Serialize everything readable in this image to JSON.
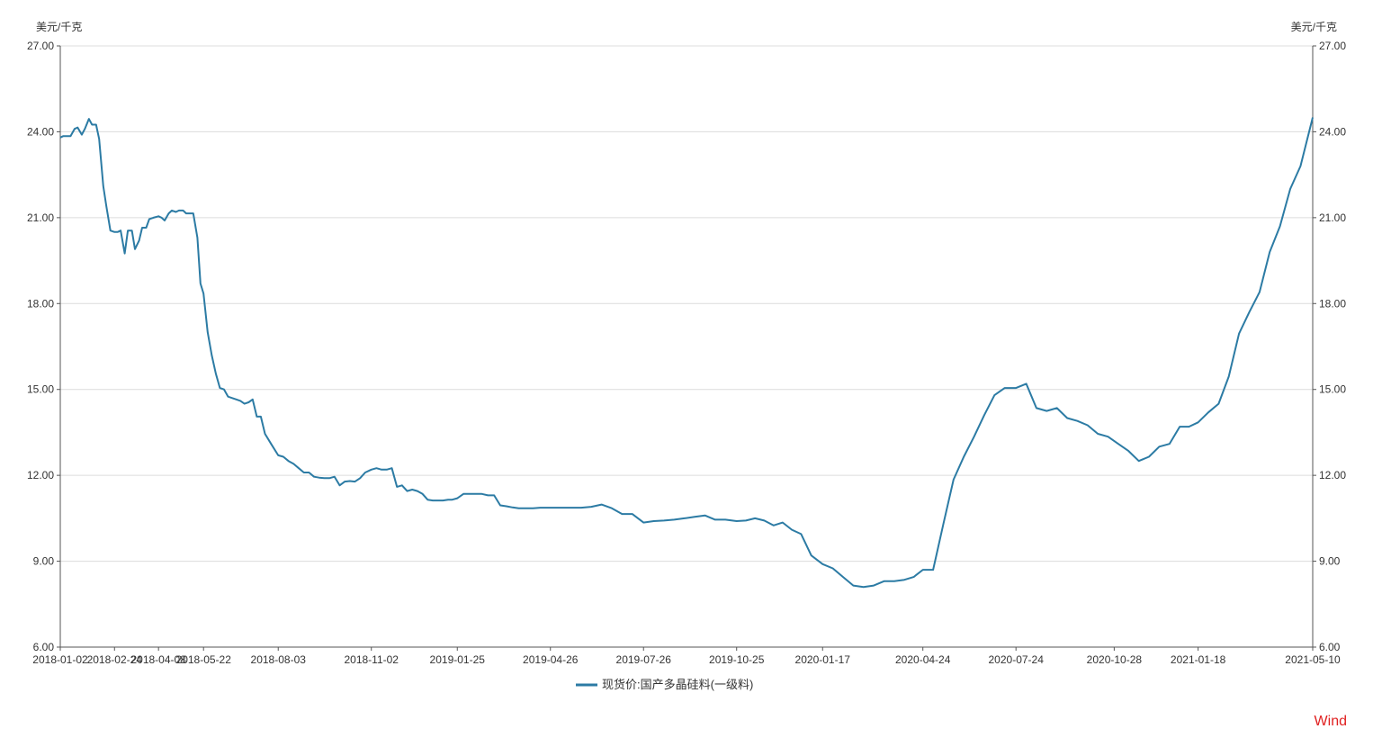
{
  "colors": {
    "series": "#2c7ba4",
    "grid": "#dcdcdc",
    "axis": "#555555",
    "text": "#333333",
    "watermark": "#e02020"
  },
  "watermark": "Wind",
  "chart_data": {
    "type": "line",
    "title": "",
    "ylabel_left": "美元/千克",
    "ylabel_right": "美元/千克",
    "ylim": [
      6,
      27
    ],
    "yticks": [
      "6.00",
      "9.00",
      "12.00",
      "15.00",
      "18.00",
      "21.00",
      "24.00",
      "27.00"
    ],
    "xlim": [
      "2018-01-02",
      "2021-05-10"
    ],
    "xticks": [
      "2018-01-02",
      "2018-02-24",
      "2018-04-08",
      "2018-05-22",
      "2018-08-03",
      "2018-11-02",
      "2019-01-25",
      "2019-04-26",
      "2019-07-26",
      "2019-10-25",
      "2020-01-17",
      "2020-04-24",
      "2020-07-24",
      "2020-10-28",
      "2021-01-18",
      "2021-05-10"
    ],
    "grid": true,
    "legend_position": "bottom-center",
    "series": [
      {
        "name": "现货价:国产多晶硅料(一级料)",
        "points": [
          [
            "2018-01-02",
            23.8
          ],
          [
            "2018-01-05",
            23.85
          ],
          [
            "2018-01-09",
            23.85
          ],
          [
            "2018-01-12",
            23.85
          ],
          [
            "2018-01-16",
            24.1
          ],
          [
            "2018-01-19",
            24.15
          ],
          [
            "2018-01-23",
            23.9
          ],
          [
            "2018-01-26",
            24.1
          ],
          [
            "2018-01-30",
            24.45
          ],
          [
            "2018-02-02",
            24.25
          ],
          [
            "2018-02-06",
            24.25
          ],
          [
            "2018-02-09",
            23.75
          ],
          [
            "2018-02-13",
            22.1
          ],
          [
            "2018-02-16",
            21.4
          ],
          [
            "2018-02-20",
            20.55
          ],
          [
            "2018-02-24",
            20.5
          ],
          [
            "2018-02-27",
            20.5
          ],
          [
            "2018-03-02",
            20.55
          ],
          [
            "2018-03-06",
            19.75
          ],
          [
            "2018-03-09",
            20.55
          ],
          [
            "2018-03-13",
            20.55
          ],
          [
            "2018-03-16",
            19.9
          ],
          [
            "2018-03-20",
            20.2
          ],
          [
            "2018-03-23",
            20.65
          ],
          [
            "2018-03-27",
            20.65
          ],
          [
            "2018-03-30",
            20.95
          ],
          [
            "2018-04-03",
            21.0
          ],
          [
            "2018-04-08",
            21.05
          ],
          [
            "2018-04-11",
            21.0
          ],
          [
            "2018-04-14",
            20.9
          ],
          [
            "2018-04-18",
            21.15
          ],
          [
            "2018-04-21",
            21.25
          ],
          [
            "2018-04-25",
            21.2
          ],
          [
            "2018-04-28",
            21.25
          ],
          [
            "2018-05-02",
            21.25
          ],
          [
            "2018-05-05",
            21.15
          ],
          [
            "2018-05-09",
            21.15
          ],
          [
            "2018-05-12",
            21.15
          ],
          [
            "2018-05-16",
            20.3
          ],
          [
            "2018-05-19",
            18.7
          ],
          [
            "2018-05-22",
            18.35
          ],
          [
            "2018-05-26",
            17.0
          ],
          [
            "2018-05-30",
            16.2
          ],
          [
            "2018-06-03",
            15.55
          ],
          [
            "2018-06-07",
            15.05
          ],
          [
            "2018-06-11",
            15.0
          ],
          [
            "2018-06-15",
            14.75
          ],
          [
            "2018-06-19",
            14.7
          ],
          [
            "2018-06-23",
            14.65
          ],
          [
            "2018-06-27",
            14.6
          ],
          [
            "2018-07-01",
            14.5
          ],
          [
            "2018-07-05",
            14.55
          ],
          [
            "2018-07-09",
            14.65
          ],
          [
            "2018-07-13",
            14.05
          ],
          [
            "2018-07-17",
            14.05
          ],
          [
            "2018-07-21",
            13.45
          ],
          [
            "2018-07-27",
            13.1
          ],
          [
            "2018-08-03",
            12.7
          ],
          [
            "2018-08-08",
            12.65
          ],
          [
            "2018-08-13",
            12.5
          ],
          [
            "2018-08-18",
            12.4
          ],
          [
            "2018-08-23",
            12.25
          ],
          [
            "2018-08-28",
            12.1
          ],
          [
            "2018-09-02",
            12.1
          ],
          [
            "2018-09-07",
            11.95
          ],
          [
            "2018-09-12",
            11.92
          ],
          [
            "2018-09-17",
            11.9
          ],
          [
            "2018-09-22",
            11.9
          ],
          [
            "2018-09-27",
            11.95
          ],
          [
            "2018-10-02",
            11.65
          ],
          [
            "2018-10-07",
            11.78
          ],
          [
            "2018-10-12",
            11.8
          ],
          [
            "2018-10-17",
            11.78
          ],
          [
            "2018-10-22",
            11.9
          ],
          [
            "2018-10-27",
            12.1
          ],
          [
            "2018-11-02",
            12.2
          ],
          [
            "2018-11-07",
            12.25
          ],
          [
            "2018-11-12",
            12.2
          ],
          [
            "2018-11-17",
            12.2
          ],
          [
            "2018-11-22",
            12.25
          ],
          [
            "2018-11-27",
            11.6
          ],
          [
            "2018-12-02",
            11.65
          ],
          [
            "2018-12-07",
            11.45
          ],
          [
            "2018-12-12",
            11.5
          ],
          [
            "2018-12-17",
            11.45
          ],
          [
            "2018-12-22",
            11.35
          ],
          [
            "2018-12-27",
            11.15
          ],
          [
            "2019-01-01",
            11.12
          ],
          [
            "2019-01-06",
            11.12
          ],
          [
            "2019-01-11",
            11.12
          ],
          [
            "2019-01-16",
            11.15
          ],
          [
            "2019-01-20",
            11.15
          ],
          [
            "2019-01-25",
            11.2
          ],
          [
            "2019-01-31",
            11.35
          ],
          [
            "2019-02-06",
            11.35
          ],
          [
            "2019-02-12",
            11.35
          ],
          [
            "2019-02-18",
            11.35
          ],
          [
            "2019-02-24",
            11.3
          ],
          [
            "2019-03-02",
            11.3
          ],
          [
            "2019-03-08",
            10.95
          ],
          [
            "2019-03-14",
            10.92
          ],
          [
            "2019-03-20",
            10.88
          ],
          [
            "2019-03-26",
            10.85
          ],
          [
            "2019-04-02",
            10.85
          ],
          [
            "2019-04-09",
            10.85
          ],
          [
            "2019-04-16",
            10.87
          ],
          [
            "2019-04-26",
            10.87
          ],
          [
            "2019-05-06",
            10.87
          ],
          [
            "2019-05-16",
            10.87
          ],
          [
            "2019-05-26",
            10.87
          ],
          [
            "2019-06-05",
            10.9
          ],
          [
            "2019-06-15",
            10.98
          ],
          [
            "2019-06-25",
            10.85
          ],
          [
            "2019-07-05",
            10.65
          ],
          [
            "2019-07-15",
            10.65
          ],
          [
            "2019-07-26",
            10.35
          ],
          [
            "2019-08-05",
            10.4
          ],
          [
            "2019-08-15",
            10.42
          ],
          [
            "2019-08-25",
            10.45
          ],
          [
            "2019-09-04",
            10.5
          ],
          [
            "2019-09-14",
            10.55
          ],
          [
            "2019-09-24",
            10.6
          ],
          [
            "2019-10-04",
            10.45
          ],
          [
            "2019-10-14",
            10.45
          ],
          [
            "2019-10-25",
            10.4
          ],
          [
            "2019-11-03",
            10.42
          ],
          [
            "2019-11-12",
            10.5
          ],
          [
            "2019-11-21",
            10.42
          ],
          [
            "2019-11-30",
            10.25
          ],
          [
            "2019-12-09",
            10.35
          ],
          [
            "2019-12-18",
            10.1
          ],
          [
            "2019-12-27",
            9.95
          ],
          [
            "2020-01-06",
            9.2
          ],
          [
            "2020-01-17",
            8.9
          ],
          [
            "2020-01-27",
            8.75
          ],
          [
            "2020-02-06",
            8.45
          ],
          [
            "2020-02-16",
            8.15
          ],
          [
            "2020-02-26",
            8.1
          ],
          [
            "2020-03-07",
            8.15
          ],
          [
            "2020-03-17",
            8.3
          ],
          [
            "2020-03-27",
            8.3
          ],
          [
            "2020-04-06",
            8.35
          ],
          [
            "2020-04-15",
            8.45
          ],
          [
            "2020-04-24",
            8.7
          ],
          [
            "2020-05-04",
            8.7
          ],
          [
            "2020-05-14",
            10.3
          ],
          [
            "2020-05-24",
            11.85
          ],
          [
            "2020-06-03",
            12.65
          ],
          [
            "2020-06-13",
            13.35
          ],
          [
            "2020-06-23",
            14.1
          ],
          [
            "2020-07-03",
            14.8
          ],
          [
            "2020-07-13",
            15.05
          ],
          [
            "2020-07-24",
            15.05
          ],
          [
            "2020-08-03",
            15.2
          ],
          [
            "2020-08-13",
            14.35
          ],
          [
            "2020-08-23",
            14.25
          ],
          [
            "2020-09-02",
            14.35
          ],
          [
            "2020-09-12",
            14.0
          ],
          [
            "2020-09-22",
            13.9
          ],
          [
            "2020-10-02",
            13.75
          ],
          [
            "2020-10-12",
            13.45
          ],
          [
            "2020-10-22",
            13.35
          ],
          [
            "2020-11-01",
            13.1
          ],
          [
            "2020-11-11",
            12.85
          ],
          [
            "2020-11-21",
            12.5
          ],
          [
            "2020-12-01",
            12.65
          ],
          [
            "2020-12-11",
            13.0
          ],
          [
            "2020-12-21",
            13.1
          ],
          [
            "2020-12-31",
            13.7
          ],
          [
            "2021-01-09",
            13.7
          ],
          [
            "2021-01-18",
            13.85
          ],
          [
            "2021-01-28",
            14.2
          ],
          [
            "2021-02-07",
            14.5
          ],
          [
            "2021-02-17",
            15.45
          ],
          [
            "2021-02-27",
            16.95
          ],
          [
            "2021-03-09",
            17.7
          ],
          [
            "2021-03-19",
            18.4
          ],
          [
            "2021-03-29",
            19.8
          ],
          [
            "2021-04-08",
            20.7
          ],
          [
            "2021-04-18",
            22.0
          ],
          [
            "2021-04-28",
            22.8
          ],
          [
            "2021-05-10",
            24.5
          ]
        ]
      }
    ]
  }
}
